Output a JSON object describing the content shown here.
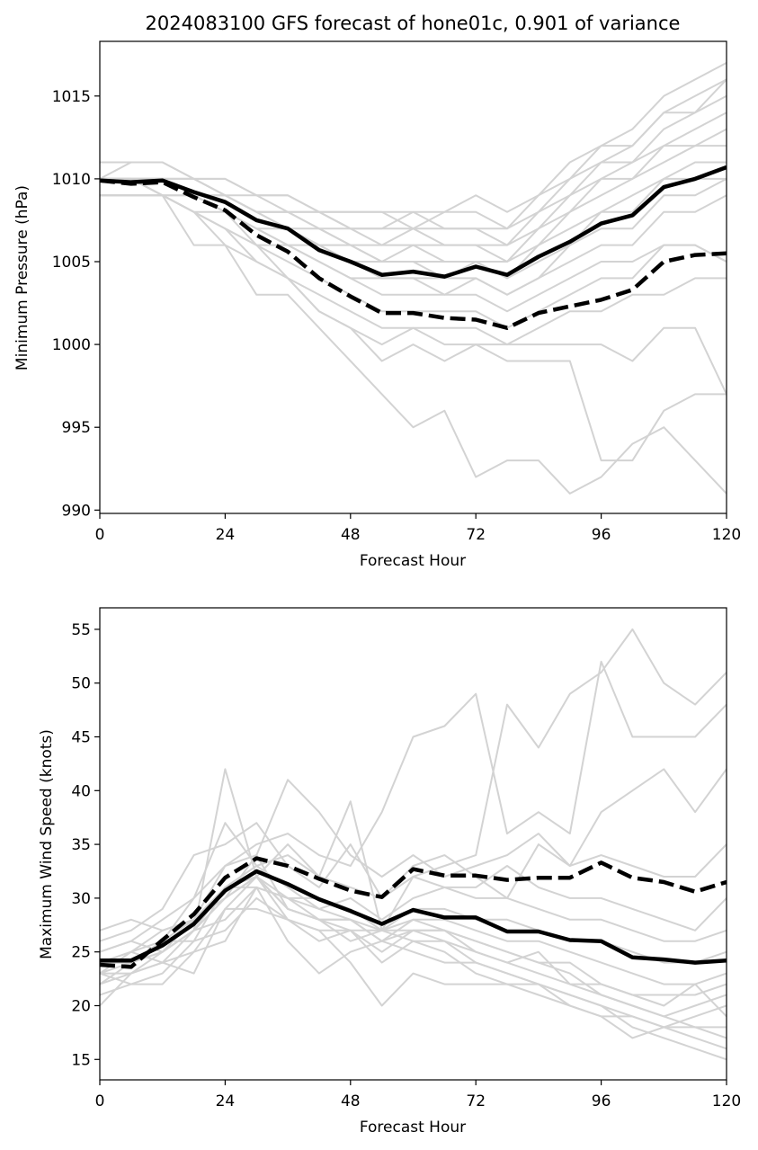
{
  "colors": {
    "ensemble": "#d3d3d3",
    "mean": "#000000",
    "background": "#ffffff",
    "axes": "#000000"
  },
  "chart_data": [
    {
      "type": "line",
      "title": "2024083100 GFS forecast of hone01c, 0.901 of variance",
      "xlabel": "Forecast Hour",
      "ylabel": "Minimum Pressure (hPa)",
      "xlim": [
        0,
        120
      ],
      "ylim": [
        989.8,
        1018.3
      ],
      "xticks": [
        0,
        24,
        48,
        72,
        96,
        120
      ],
      "yticks": [
        990,
        995,
        1000,
        1005,
        1010,
        1015
      ],
      "grid": false,
      "x": [
        0,
        6,
        12,
        18,
        24,
        30,
        36,
        42,
        48,
        54,
        60,
        66,
        72,
        78,
        84,
        90,
        96,
        102,
        108,
        114,
        120
      ],
      "series": [
        {
          "style": "solid",
          "values": [
            1009.9,
            1009.8,
            1009.9,
            1009.2,
            1008.6,
            1007.5,
            1007.0,
            1005.7,
            1005.0,
            1004.2,
            1004.4,
            1004.1,
            1004.7,
            1004.2,
            1005.3,
            1006.2,
            1007.3,
            1007.8,
            1009.5,
            1010.0,
            1010.7
          ]
        },
        {
          "style": "dashed",
          "values": [
            1009.9,
            1009.7,
            1009.8,
            1008.9,
            1008.1,
            1006.6,
            1005.6,
            1004.0,
            1002.9,
            1001.9,
            1001.9,
            1001.6,
            1001.5,
            1001.0,
            1001.9,
            1002.3,
            1002.7,
            1003.3,
            1005.0,
            1005.4,
            1005.5
          ]
        }
      ],
      "ensemble": [
        [
          1011,
          1011,
          1011,
          1010,
          1010,
          1009,
          1009,
          1008,
          1008,
          1008,
          1008,
          1008,
          1009,
          1008,
          1009,
          1011,
          1012,
          1013,
          1015,
          1016,
          1017
        ],
        [
          1010,
          1010,
          1010,
          1010,
          1010,
          1009,
          1009,
          1008,
          1008,
          1008,
          1007,
          1008,
          1008,
          1007,
          1009,
          1010,
          1012,
          1012,
          1014,
          1015,
          1016
        ],
        [
          1010,
          1011,
          1011,
          1010,
          1009,
          1009,
          1008,
          1008,
          1007,
          1007,
          1008,
          1007,
          1007,
          1007,
          1008,
          1010,
          1011,
          1012,
          1014,
          1014,
          1016
        ],
        [
          1010,
          1010,
          1010,
          1010,
          1009,
          1008,
          1008,
          1008,
          1007,
          1007,
          1007,
          1007,
          1007,
          1006,
          1008,
          1009,
          1011,
          1011,
          1013,
          1014,
          1015
        ],
        [
          1010,
          1010,
          1010,
          1009,
          1009,
          1008,
          1008,
          1007,
          1007,
          1006,
          1007,
          1006,
          1006,
          1006,
          1007,
          1009,
          1010,
          1011,
          1012,
          1013,
          1014
        ],
        [
          1010,
          1010,
          1009,
          1009,
          1009,
          1008,
          1008,
          1007,
          1006,
          1006,
          1006,
          1006,
          1006,
          1005,
          1007,
          1008,
          1010,
          1010,
          1012,
          1012,
          1013
        ],
        [
          1010,
          1010,
          1010,
          1010,
          1009,
          1008,
          1007,
          1007,
          1006,
          1005,
          1006,
          1005,
          1005,
          1005,
          1006,
          1008,
          1009,
          1010,
          1011,
          1012,
          1012
        ],
        [
          1010,
          1010,
          1010,
          1009,
          1009,
          1008,
          1007,
          1006,
          1006,
          1005,
          1005,
          1005,
          1005,
          1004,
          1006,
          1007,
          1008,
          1009,
          1010,
          1011,
          1011
        ],
        [
          1010,
          1010,
          1010,
          1009,
          1008,
          1007,
          1007,
          1006,
          1005,
          1005,
          1005,
          1004,
          1005,
          1004,
          1005,
          1006,
          1008,
          1008,
          1010,
          1010,
          1010
        ],
        [
          1010,
          1010,
          1010,
          1009,
          1008,
          1007,
          1006,
          1006,
          1005,
          1004,
          1004,
          1004,
          1004,
          1003,
          1004,
          1006,
          1007,
          1007,
          1009,
          1009,
          1010
        ],
        [
          1009,
          1009,
          1009,
          1009,
          1008,
          1007,
          1006,
          1005,
          1004,
          1004,
          1004,
          1003,
          1004,
          1003,
          1004,
          1005,
          1006,
          1006,
          1008,
          1008,
          1009
        ],
        [
          1009,
          1009,
          1009,
          1008,
          1008,
          1006,
          1006,
          1005,
          1004,
          1003,
          1003,
          1003,
          1003,
          1002,
          1003,
          1004,
          1005,
          1005,
          1006,
          1006,
          1005
        ],
        [
          1009,
          1009,
          1009,
          1008,
          1007,
          1006,
          1005,
          1004,
          1003,
          1002,
          1002,
          1002,
          1002,
          1001,
          1002,
          1003,
          1004,
          1004,
          1006,
          1006,
          1005
        ],
        [
          1009,
          1009,
          1009,
          1006,
          1006,
          1005,
          1004,
          1003,
          1002,
          1001,
          1001,
          1001,
          1001,
          1000,
          1001,
          1002,
          1002,
          1003,
          1003,
          1004,
          1004
        ],
        [
          1010,
          1010,
          1009,
          1008,
          1007,
          1006,
          1004,
          1002,
          1001,
          1000,
          1001,
          1000,
          1000,
          1000,
          1000,
          1000,
          1000,
          999,
          1001,
          1001,
          997
        ],
        [
          1010,
          1010,
          1009,
          1008,
          1007,
          1005,
          1004,
          1002,
          1001,
          999,
          1000,
          999,
          1000,
          999,
          999,
          999,
          993,
          993,
          996,
          997,
          997
        ],
        [
          1010,
          1010,
          1009,
          1008,
          1006,
          1003,
          1003,
          1001,
          999,
          997,
          995,
          996,
          992,
          993,
          993,
          991,
          992,
          994,
          995,
          993,
          991
        ]
      ]
    },
    {
      "type": "line",
      "title": "",
      "xlabel": "Forecast Hour",
      "ylabel": "Maximum Wind Speed (knots)",
      "xlim": [
        0,
        120
      ],
      "ylim": [
        13.1,
        57.0
      ],
      "xticks": [
        0,
        24,
        48,
        72,
        96,
        120
      ],
      "yticks": [
        15,
        20,
        25,
        30,
        35,
        40,
        45,
        50,
        55
      ],
      "grid": false,
      "x": [
        0,
        6,
        12,
        18,
        24,
        30,
        36,
        42,
        48,
        54,
        60,
        66,
        72,
        78,
        84,
        90,
        96,
        102,
        108,
        114,
        120
      ],
      "series": [
        {
          "style": "solid",
          "values": [
            24.2,
            24.2,
            25.6,
            27.6,
            30.7,
            32.5,
            31.3,
            29.9,
            28.8,
            27.6,
            28.9,
            28.2,
            28.2,
            26.9,
            26.9,
            26.1,
            26.0,
            24.5,
            24.3,
            24.0,
            24.2
          ]
        },
        {
          "style": "dashed",
          "values": [
            23.8,
            23.6,
            26.1,
            28.5,
            31.9,
            33.7,
            33.0,
            31.8,
            30.7,
            30.1,
            32.7,
            32.1,
            32.1,
            31.7,
            31.9,
            31.9,
            33.3,
            31.9,
            31.5,
            30.6,
            31.5
          ]
        }
      ],
      "ensemble": [
        [
          22,
          24,
          26,
          30,
          37,
          33,
          34,
          32,
          39,
          27,
          32,
          33,
          34,
          48,
          44,
          49,
          51,
          55,
          50,
          48,
          51
        ],
        [
          24,
          25,
          27,
          28,
          33,
          35,
          36,
          34,
          33,
          38,
          45,
          46,
          49,
          36,
          38,
          36,
          52,
          45,
          45,
          45,
          48
        ],
        [
          23,
          25,
          24,
          27,
          42,
          32,
          35,
          32,
          31,
          30,
          33,
          34,
          32,
          30,
          35,
          33,
          38,
          40,
          42,
          38,
          42
        ],
        [
          25,
          26,
          28,
          30,
          33,
          34,
          41,
          38,
          34,
          32,
          34,
          32,
          33,
          34,
          36,
          33,
          34,
          33,
          32,
          32,
          35
        ],
        [
          26,
          27,
          29,
          34,
          35,
          37,
          33,
          31,
          35,
          30,
          32,
          31,
          31,
          33,
          31,
          30,
          30,
          29,
          28,
          27,
          30
        ],
        [
          24,
          25,
          26,
          28,
          31,
          33,
          31,
          29,
          30,
          28,
          30,
          31,
          30,
          30,
          29,
          28,
          28,
          27,
          26,
          26,
          27
        ],
        [
          24,
          24,
          25,
          27,
          30,
          32,
          30,
          30,
          29,
          27,
          29,
          29,
          28,
          28,
          27,
          26,
          26,
          25,
          24,
          24,
          25
        ],
        [
          23,
          23,
          25,
          28,
          30,
          34,
          29,
          28,
          28,
          26,
          28,
          28,
          27,
          26,
          26,
          25,
          24,
          23,
          22,
          22,
          23
        ],
        [
          22,
          23,
          24,
          25,
          29,
          32,
          28,
          27,
          27,
          25,
          27,
          27,
          26,
          25,
          24,
          24,
          22,
          21,
          21,
          21,
          22
        ],
        [
          21,
          22,
          23,
          26,
          27,
          30,
          28,
          26,
          27,
          24,
          26,
          26,
          25,
          24,
          23,
          22,
          21,
          20,
          19,
          20,
          21
        ],
        [
          23,
          22,
          22,
          25,
          26,
          31,
          26,
          23,
          25,
          26,
          25,
          24,
          24,
          23,
          22,
          21,
          20,
          19,
          18,
          19,
          20
        ],
        [
          20,
          23,
          24,
          23,
          29,
          29,
          28,
          27,
          24,
          20,
          23,
          22,
          22,
          22,
          21,
          20,
          19,
          19,
          18,
          18,
          18
        ],
        [
          25,
          26,
          25,
          27,
          28,
          31,
          30,
          29,
          28,
          27,
          26,
          25,
          23,
          22,
          22,
          21,
          20,
          18,
          17,
          16,
          15
        ],
        [
          27,
          28,
          27,
          28,
          30,
          32,
          29,
          28,
          26,
          27,
          27,
          26,
          24,
          23,
          22,
          20,
          19,
          17,
          18,
          17,
          16
        ],
        [
          24,
          24,
          26,
          26,
          31,
          31,
          30,
          28,
          27,
          27,
          28,
          27,
          26,
          25,
          24,
          23,
          21,
          20,
          19,
          18,
          17
        ],
        [
          23,
          24,
          25,
          27,
          31,
          32,
          29,
          28,
          28,
          26,
          27,
          27,
          25,
          24,
          25,
          22,
          22,
          21,
          20,
          22,
          19
        ]
      ]
    }
  ]
}
